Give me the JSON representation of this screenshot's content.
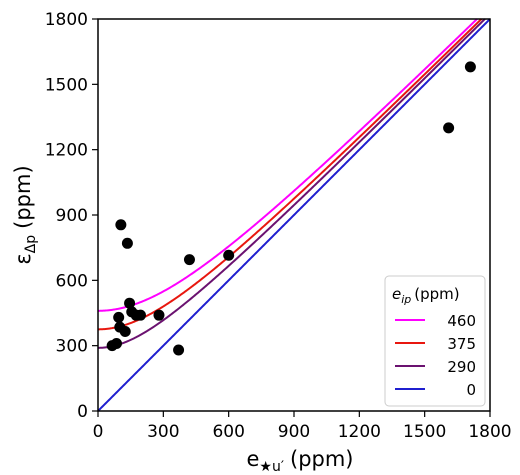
{
  "chart_data": {
    "type": "scatter",
    "xlim": [
      0,
      1800
    ],
    "ylim": [
      0,
      1800
    ],
    "xticks": [
      "0",
      "300",
      "600",
      "900",
      "1200",
      "1500",
      "1800"
    ],
    "yticks": [
      "0",
      "300",
      "600",
      "900",
      "1200",
      "1500",
      "1800"
    ],
    "xlabel": {
      "main": "e",
      "sub": "★u′",
      "unit": "(ppm)"
    },
    "ylabel": {
      "main": "ε",
      "sub": "Δp",
      "unit": "(ppm)"
    },
    "legend": {
      "position": "lower-right",
      "title": {
        "main": "e",
        "sub": "ip",
        "unit": "(ppm)"
      }
    },
    "series": [
      {
        "name": "460",
        "color": "#ff00ff",
        "eip": 460
      },
      {
        "name": "375",
        "color": "#e8170f",
        "eip": 375
      },
      {
        "name": "290",
        "color": "#6b1270",
        "eip": 290
      },
      {
        "name": "0",
        "color": "#1f1fcf",
        "eip": 0
      }
    ],
    "points": [
      {
        "x": 65,
        "y": 300
      },
      {
        "x": 85,
        "y": 310
      },
      {
        "x": 95,
        "y": 430
      },
      {
        "x": 100,
        "y": 385
      },
      {
        "x": 105,
        "y": 855
      },
      {
        "x": 125,
        "y": 365
      },
      {
        "x": 135,
        "y": 770
      },
      {
        "x": 145,
        "y": 495
      },
      {
        "x": 155,
        "y": 455
      },
      {
        "x": 175,
        "y": 440
      },
      {
        "x": 195,
        "y": 440
      },
      {
        "x": 280,
        "y": 440
      },
      {
        "x": 370,
        "y": 280
      },
      {
        "x": 420,
        "y": 695
      },
      {
        "x": 600,
        "y": 715
      },
      {
        "x": 1610,
        "y": 1300
      },
      {
        "x": 1710,
        "y": 1580
      }
    ],
    "grid": false
  }
}
